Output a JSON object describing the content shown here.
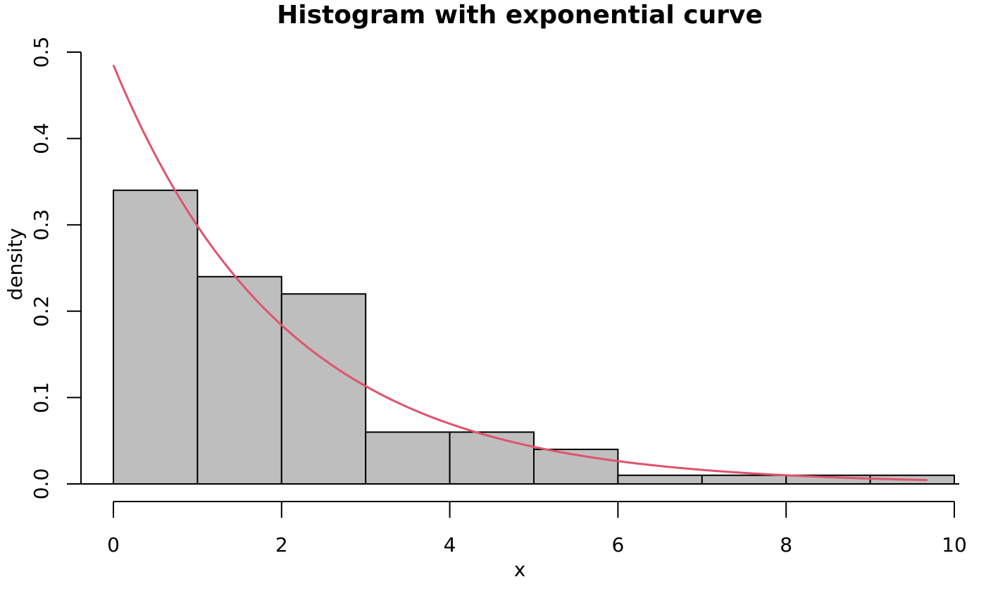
{
  "chart_data": {
    "type": "bar",
    "title": "Histogram with exponential curve",
    "xlabel": "x",
    "ylabel": "density",
    "xlim": [
      0,
      10
    ],
    "ylim": [
      0,
      0.5
    ],
    "x_ticks": [
      0,
      2,
      4,
      6,
      8,
      10
    ],
    "x_tick_labels": [
      "0",
      "2",
      "4",
      "6",
      "8",
      "10"
    ],
    "y_ticks": [
      0,
      0.1,
      0.2,
      0.3,
      0.4,
      0.5
    ],
    "y_tick_labels": [
      "0.0",
      "0.1",
      "0.2",
      "0.3",
      "0.4",
      "0.5"
    ],
    "bins": [
      {
        "x0": 0,
        "x1": 1,
        "density": 0.34
      },
      {
        "x0": 1,
        "x1": 2,
        "density": 0.24
      },
      {
        "x0": 2,
        "x1": 3,
        "density": 0.22
      },
      {
        "x0": 3,
        "x1": 4,
        "density": 0.06
      },
      {
        "x0": 4,
        "x1": 5,
        "density": 0.06
      },
      {
        "x0": 5,
        "x1": 6,
        "density": 0.04
      },
      {
        "x0": 6,
        "x1": 7,
        "density": 0.01
      },
      {
        "x0": 7,
        "x1": 8,
        "density": 0.01
      },
      {
        "x0": 8,
        "x1": 9,
        "density": 0.01
      },
      {
        "x0": 9,
        "x1": 10,
        "density": 0.01
      }
    ],
    "curve": {
      "type": "exponential density",
      "rate": 0.485,
      "x_range": [
        0,
        9.68
      ],
      "color": "#DF536B"
    },
    "bar_fill": "#BEBEBE",
    "grid": false,
    "legend": "none"
  }
}
